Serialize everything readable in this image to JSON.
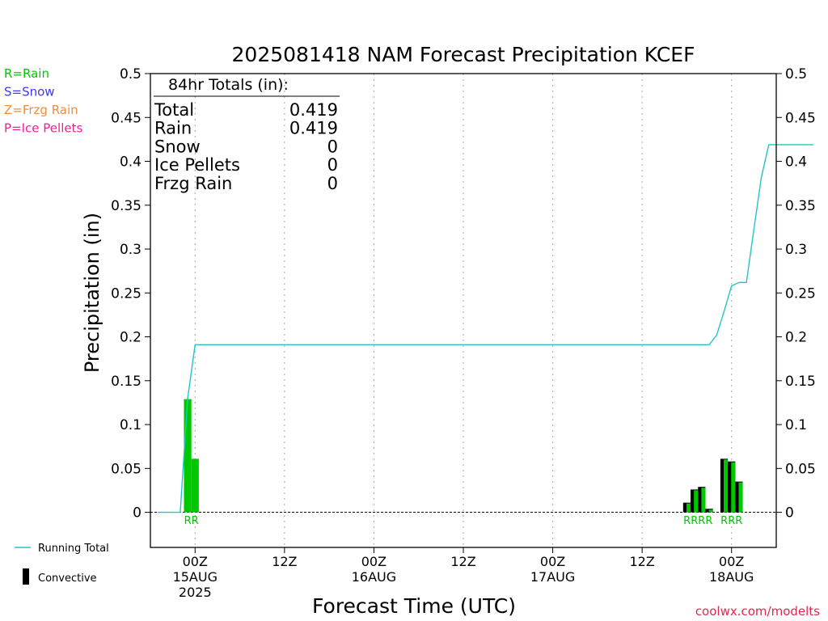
{
  "chart_data": {
    "type": "bar",
    "title": "2025081418 NAM Forecast Precipitation KCEF",
    "xlabel": "Forecast Time (UTC)",
    "ylabel": "Precipitation (in)",
    "ylim": [
      -0.04,
      0.5
    ],
    "xlim_hours": [
      -6,
      78
    ],
    "grid": "vertical dotted lines at 12-hour ticks",
    "y_ticks": [
      {
        "value": 0,
        "label": "0"
      },
      {
        "value": 0.05,
        "label": "0.05"
      },
      {
        "value": 0.1,
        "label": "0.1"
      },
      {
        "value": 0.15,
        "label": "0.15"
      },
      {
        "value": 0.2,
        "label": "0.2"
      },
      {
        "value": 0.25,
        "label": "0.25"
      },
      {
        "value": 0.3,
        "label": "0.3"
      },
      {
        "value": 0.35,
        "label": "0.35"
      },
      {
        "value": 0.4,
        "label": "0.4"
      },
      {
        "value": 0.45,
        "label": "0.45"
      },
      {
        "value": 0.5,
        "label": "0.5"
      }
    ],
    "x_ticks": [
      {
        "hour": 0,
        "lines": [
          "00Z",
          "15AUG",
          "2025"
        ]
      },
      {
        "hour": 12,
        "lines": [
          "12Z"
        ]
      },
      {
        "hour": 24,
        "lines": [
          "00Z",
          "16AUG"
        ]
      },
      {
        "hour": 36,
        "lines": [
          "12Z"
        ]
      },
      {
        "hour": 48,
        "lines": [
          "00Z",
          "17AUG"
        ]
      },
      {
        "hour": 60,
        "lines": [
          "12Z"
        ]
      },
      {
        "hour": 72,
        "lines": [
          "00Z",
          "18AUG"
        ]
      }
    ],
    "type_legend": [
      {
        "label": "R=Rain",
        "color": "#00c800"
      },
      {
        "label": "S=Snow",
        "color": "#3c3cf0"
      },
      {
        "label": "Z=Frzg Rain",
        "color": "#f08c3c"
      },
      {
        "label": "P=Ice Pellets",
        "color": "#f01e96"
      }
    ],
    "totals": {
      "header": "84hr Totals (in):",
      "rows": [
        {
          "label": "Total",
          "value": "0.419"
        },
        {
          "label": "Rain",
          "value": "0.419"
        },
        {
          "label": "Snow",
          "value": "0"
        },
        {
          "label": "Ice Pellets",
          "value": "0"
        },
        {
          "label": "Frzg Rain",
          "value": "0"
        }
      ]
    },
    "series": [
      {
        "name": "Running Total",
        "type": "line",
        "color": "#22c5c5",
        "points": [
          {
            "hour": -5,
            "value": 0
          },
          {
            "hour": -2,
            "value": 0
          },
          {
            "hour": -1,
            "value": 0.13
          },
          {
            "hour": 0,
            "value": 0.191
          },
          {
            "hour": 69,
            "value": 0.191
          },
          {
            "hour": 70,
            "value": 0.202
          },
          {
            "hour": 71,
            "value": 0.229
          },
          {
            "hour": 72,
            "value": 0.258
          },
          {
            "hour": 73,
            "value": 0.262
          },
          {
            "hour": 74,
            "value": 0.262
          },
          {
            "hour": 75,
            "value": 0.323
          },
          {
            "hour": 76,
            "value": 0.382
          },
          {
            "hour": 77,
            "value": 0.419
          },
          {
            "hour": 83,
            "value": 0.419
          }
        ]
      },
      {
        "name": "precipitation",
        "type": "bar",
        "color": "#00c800",
        "bars": [
          {
            "hour": -1,
            "value": 0.129,
            "convective": false
          },
          {
            "hour": 0,
            "value": 0.061,
            "convective": false
          },
          {
            "hour": 66,
            "value": 0.011,
            "convective": true
          },
          {
            "hour": 67,
            "value": 0.026,
            "convective": true
          },
          {
            "hour": 68,
            "value": 0.029,
            "convective": true
          },
          {
            "hour": 69,
            "value": 0.004,
            "convective": true
          },
          {
            "hour": 71,
            "value": 0.061,
            "convective": true
          },
          {
            "hour": 72,
            "value": 0.058,
            "convective": true
          },
          {
            "hour": 73,
            "value": 0.035,
            "convective": true
          }
        ]
      }
    ],
    "type_markers": [
      {
        "hour": -0.5,
        "text": "RR"
      },
      {
        "hour": 67.5,
        "text": "RRRR"
      },
      {
        "hour": 72,
        "text": "RRR"
      }
    ],
    "bottom_legend": [
      {
        "label": "Running Total",
        "kind": "line"
      },
      {
        "label": "Convective",
        "kind": "bar"
      }
    ],
    "credit": "coolwx.com/modelts"
  }
}
